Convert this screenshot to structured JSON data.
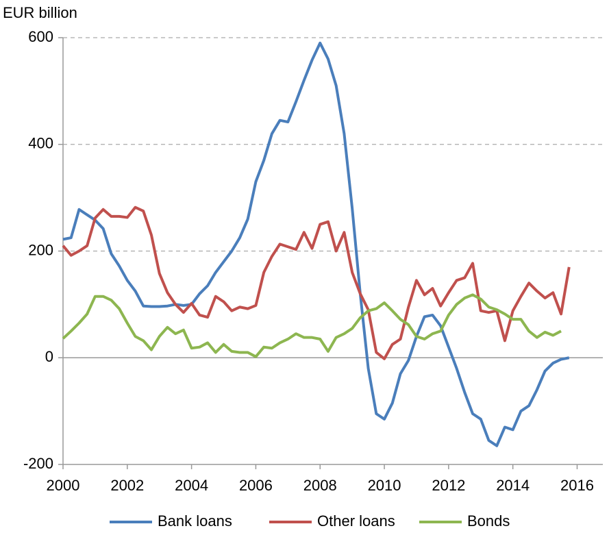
{
  "chart_data": {
    "type": "line",
    "y_axis_label": "EUR billion",
    "x": [
      2000,
      2000.25,
      2000.5,
      2000.75,
      2001,
      2001.25,
      2001.5,
      2001.75,
      2002,
      2002.25,
      2002.5,
      2002.75,
      2003,
      2003.25,
      2003.5,
      2003.75,
      2004,
      2004.25,
      2004.5,
      2004.75,
      2005,
      2005.25,
      2005.5,
      2005.75,
      2006,
      2006.25,
      2006.5,
      2006.75,
      2007,
      2007.25,
      2007.5,
      2007.75,
      2008,
      2008.25,
      2008.5,
      2008.75,
      2009,
      2009.25,
      2009.5,
      2009.75,
      2010,
      2010.25,
      2010.5,
      2010.75,
      2011,
      2011.25,
      2011.5,
      2011.75,
      2012,
      2012.25,
      2012.5,
      2012.75,
      2013,
      2013.25,
      2013.5,
      2013.75,
      2014,
      2014.25,
      2014.5,
      2014.75,
      2015,
      2015.25,
      2015.5,
      2015.75,
      2016
    ],
    "series": [
      {
        "name": "Bank loans",
        "color": "#4a7ebb",
        "values": [
          222,
          225,
          278,
          268,
          258,
          242,
          195,
          172,
          145,
          125,
          97,
          96,
          96,
          97,
          100,
          98,
          100,
          120,
          135,
          160,
          180,
          200,
          225,
          260,
          330,
          370,
          420,
          445,
          442,
          480,
          520,
          558,
          590,
          560,
          510,
          420,
          280,
          120,
          -20,
          -105,
          -115,
          -85,
          -30,
          -5,
          40,
          77,
          80,
          60,
          20,
          -20,
          -65,
          -105,
          -115,
          -155,
          -165,
          -130,
          -135,
          -100,
          -90,
          -60,
          -25,
          -10,
          -3,
          0,
          null
        ]
      },
      {
        "name": "Other loans",
        "color": "#c0504d",
        "values": [
          210,
          192,
          200,
          210,
          262,
          278,
          265,
          265,
          263,
          282,
          275,
          230,
          158,
          122,
          100,
          85,
          102,
          80,
          76,
          115,
          105,
          88,
          95,
          92,
          98,
          160,
          190,
          213,
          208,
          203,
          235,
          205,
          250,
          255,
          200,
          235,
          160,
          120,
          90,
          10,
          -2,
          25,
          35,
          95,
          145,
          118,
          130,
          97,
          122,
          145,
          150,
          177,
          88,
          85,
          88,
          32,
          88,
          115,
          140,
          125,
          112,
          122,
          82,
          170,
          null
        ]
      },
      {
        "name": "Bonds",
        "color": "#8db650",
        "values": [
          36,
          50,
          65,
          82,
          115,
          115,
          108,
          92,
          65,
          40,
          32,
          15,
          40,
          57,
          45,
          52,
          18,
          20,
          28,
          10,
          25,
          12,
          10,
          10,
          2,
          20,
          18,
          28,
          35,
          45,
          38,
          38,
          35,
          12,
          38,
          45,
          55,
          75,
          88,
          92,
          103,
          88,
          72,
          62,
          40,
          35,
          45,
          50,
          80,
          100,
          112,
          118,
          110,
          95,
          90,
          82,
          72,
          72,
          50,
          38,
          48,
          42,
          50,
          null,
          null
        ]
      }
    ],
    "xlim": [
      2000,
      2016.8
    ],
    "xticks": [
      2000,
      2002,
      2004,
      2006,
      2008,
      2010,
      2012,
      2014,
      2016
    ],
    "ylim": [
      -200,
      600
    ],
    "yticks": [
      -200,
      0,
      200,
      400,
      600
    ],
    "grid": true,
    "legend": "bottom"
  }
}
